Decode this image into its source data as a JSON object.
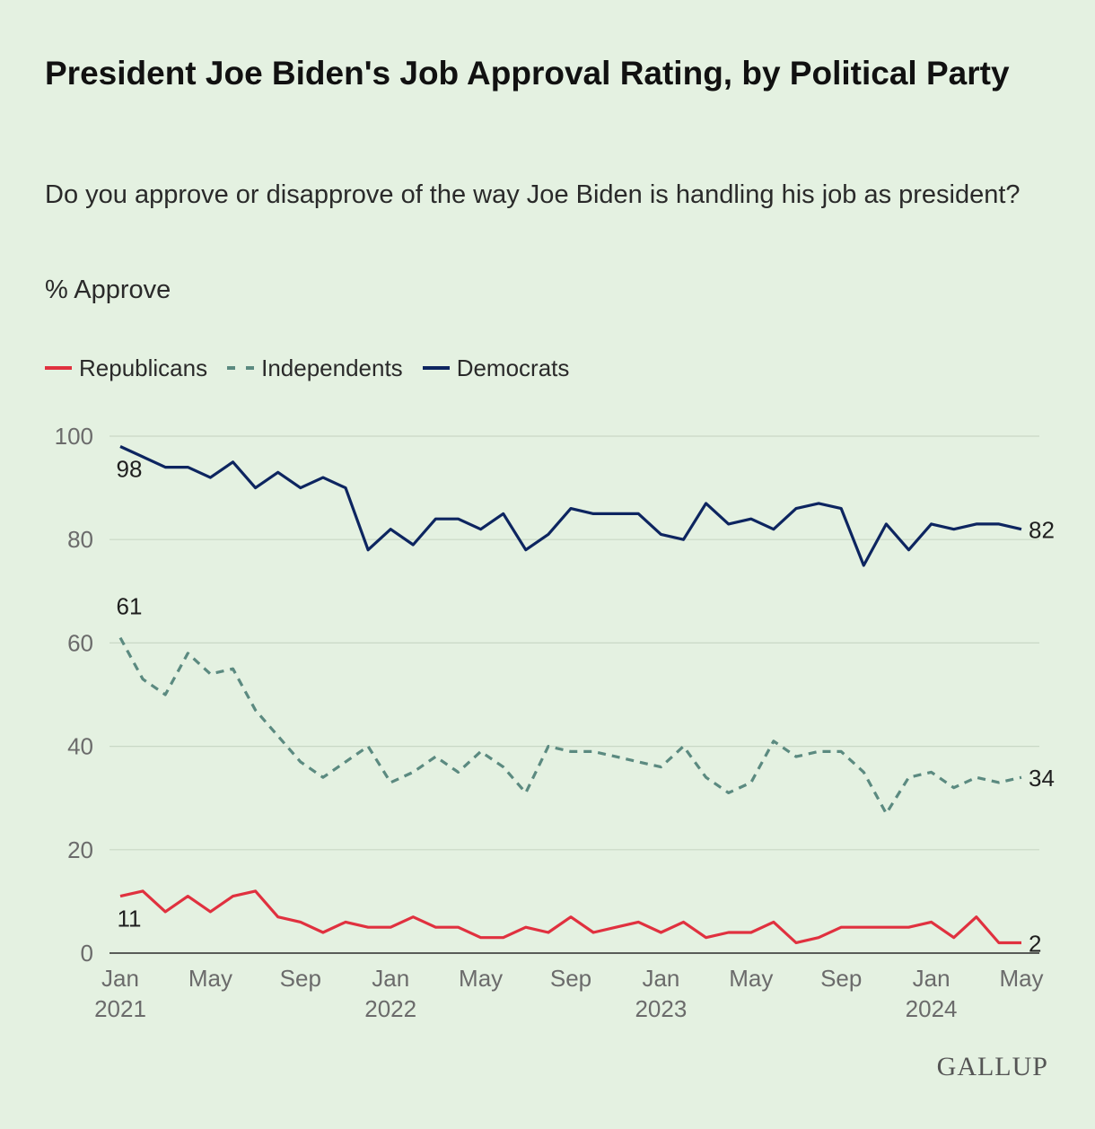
{
  "title": "President Joe Biden's Job Approval Rating, by Political Party",
  "subtitle": "Do you approve or disapprove of the way Joe Biden is handling his job as president?",
  "measure": "% Approve",
  "brand": "GALLUP",
  "colors": {
    "background": "#e4f1e1",
    "republicans": "#e0313f",
    "independents": "#5b8a80",
    "democrats": "#0d2560",
    "grid": "#c9d8c6"
  },
  "chart_data": {
    "type": "line",
    "title": "President Joe Biden's Job Approval Rating, by Political Party",
    "subtitle": "Do you approve or disapprove of the way Joe Biden is handling his job as president?",
    "ylabel": "% Approve",
    "ylim": [
      0,
      100
    ],
    "yticks": [
      "0",
      "20",
      "40",
      "60",
      "80",
      "100"
    ],
    "xlim": [
      "2021-01",
      "2024-05"
    ],
    "xticks": [
      {
        "date": "2021-01",
        "label": [
          "Jan",
          "2021"
        ]
      },
      {
        "date": "2021-05",
        "label": [
          "May"
        ]
      },
      {
        "date": "2021-09",
        "label": [
          "Sep"
        ]
      },
      {
        "date": "2022-01",
        "label": [
          "Jan",
          "2022"
        ]
      },
      {
        "date": "2022-05",
        "label": [
          "May"
        ]
      },
      {
        "date": "2022-09",
        "label": [
          "Sep"
        ]
      },
      {
        "date": "2023-01",
        "label": [
          "Jan",
          "2023"
        ]
      },
      {
        "date": "2023-05",
        "label": [
          "May"
        ]
      },
      {
        "date": "2023-09",
        "label": [
          "Sep"
        ]
      },
      {
        "date": "2024-01",
        "label": [
          "Jan",
          "2024"
        ]
      },
      {
        "date": "2024-05",
        "label": [
          "May"
        ]
      }
    ],
    "grid": true,
    "legend_position": "top-left",
    "x": [
      "2021-01",
      "2021-02",
      "2021-03",
      "2021-04",
      "2021-05",
      "2021-06",
      "2021-07",
      "2021-08",
      "2021-09",
      "2021-10",
      "2021-11",
      "2021-12",
      "2022-01",
      "2022-02",
      "2022-03",
      "2022-04",
      "2022-05",
      "2022-06",
      "2022-07",
      "2022-08",
      "2022-09",
      "2022-10",
      "2022-11",
      "2022-12",
      "2023-01",
      "2023-02",
      "2023-03",
      "2023-04",
      "2023-05",
      "2023-06",
      "2023-07",
      "2023-08",
      "2023-09",
      "2023-10",
      "2023-11",
      "2023-12",
      "2024-01",
      "2024-02",
      "2024-03",
      "2024-04",
      "2024-05"
    ],
    "series": [
      {
        "name": "Republicans",
        "color": "#e0313f",
        "dashed": false,
        "values": [
          11,
          12,
          8,
          11,
          8,
          11,
          12,
          7,
          6,
          4,
          6,
          5,
          5,
          7,
          5,
          5,
          3,
          3,
          5,
          4,
          7,
          4,
          5,
          6,
          4,
          6,
          3,
          4,
          4,
          6,
          2,
          3,
          5,
          5,
          5,
          5,
          6,
          3,
          7,
          2,
          2
        ],
        "start_label": "11",
        "end_label": "2"
      },
      {
        "name": "Independents",
        "color": "#5b8a80",
        "dashed": true,
        "values": [
          61,
          53,
          50,
          58,
          54,
          55,
          47,
          42,
          37,
          34,
          37,
          40,
          33,
          35,
          38,
          35,
          39,
          36,
          31,
          40,
          39,
          39,
          38,
          37,
          36,
          40,
          34,
          31,
          33,
          41,
          38,
          39,
          39,
          35,
          27,
          34,
          35,
          32,
          34,
          33,
          34
        ],
        "start_label": "61",
        "end_label": "34"
      },
      {
        "name": "Democrats",
        "color": "#0d2560",
        "dashed": false,
        "values": [
          98,
          96,
          94,
          94,
          92,
          95,
          90,
          93,
          90,
          92,
          90,
          78,
          82,
          79,
          84,
          84,
          82,
          85,
          78,
          81,
          86,
          85,
          85,
          85,
          81,
          80,
          87,
          83,
          84,
          82,
          86,
          87,
          86,
          75,
          83,
          78,
          83,
          82,
          83,
          83,
          82
        ],
        "start_label": "98",
        "end_label": "82"
      }
    ]
  }
}
